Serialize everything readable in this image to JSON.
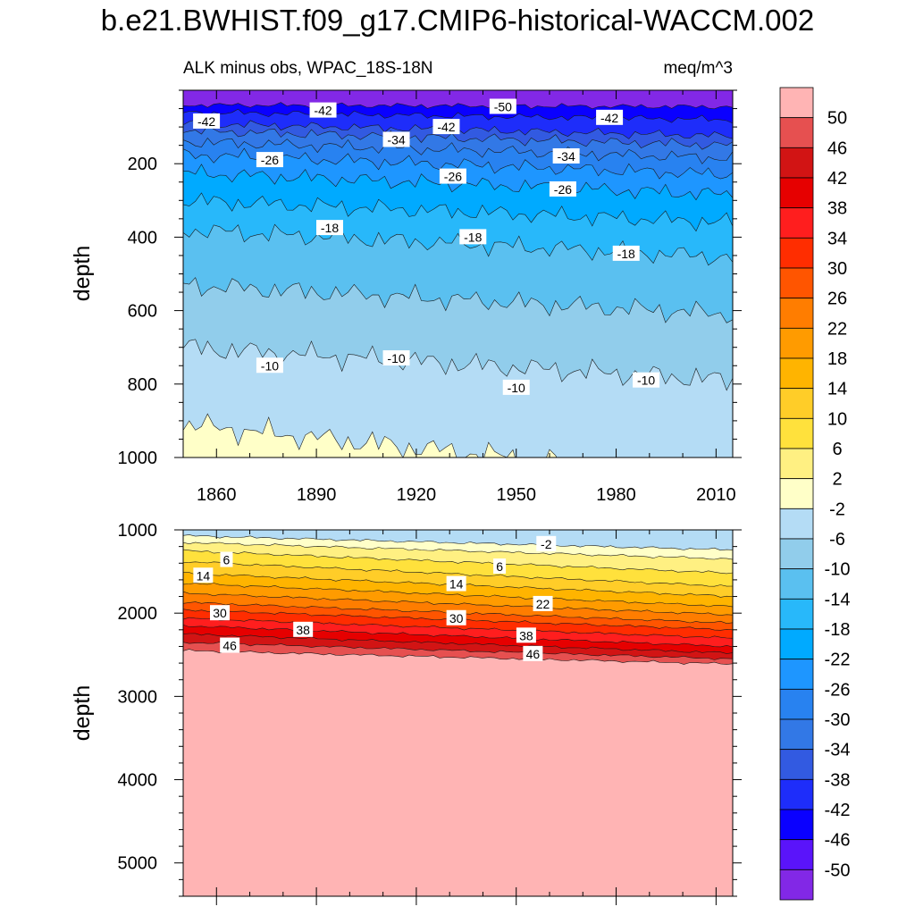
{
  "chart_data": {
    "type": "contour",
    "title": "b.e21.BWHIST.f09_g17.CMIP6-historical-WACCM.002",
    "subtitle_left": "ALK minus obs, WPAC_18S-18N",
    "subtitle_right": "meq/m^3",
    "x_ticks": [
      "1860",
      "1890",
      "1920",
      "1950",
      "1980",
      "2010"
    ],
    "x_tick_values": [
      1860,
      1890,
      1920,
      1950,
      1980,
      2010
    ],
    "xlim": [
      1850,
      2015
    ],
    "colorbar_labels": [
      "50",
      "46",
      "42",
      "38",
      "34",
      "30",
      "26",
      "22",
      "18",
      "14",
      "10",
      "6",
      "2",
      "-2",
      "-6",
      "-10",
      "-14",
      "-18",
      "-22",
      "-26",
      "-30",
      "-34",
      "-38",
      "-42",
      "-46",
      "-50"
    ],
    "colorbar_colors": [
      "#FFB4B4",
      "#E65050",
      "#D21414",
      "#E60000",
      "#FF1E1E",
      "#FF2D00",
      "#FF5500",
      "#FF7D00",
      "#FF9B00",
      "#FFB400",
      "#FFCD28",
      "#FFE13C",
      "#FFF082",
      "#FFFFC8",
      "#B4DCF5",
      "#91CDEB",
      "#5AC0F0",
      "#28B8FA",
      "#00AAFF",
      "#1E96FF",
      "#2882F0",
      "#3278E6",
      "#325AE1",
      "#1E2DFA",
      "#0A00FF",
      "#5A14FA",
      "#8228E6"
    ],
    "panels": [
      {
        "ylabel": "depth",
        "ylim": [
          0,
          1000
        ],
        "y_ticks": [
          "200",
          "400",
          "600",
          "800",
          "1000"
        ],
        "y_tick_values": [
          200,
          400,
          600,
          800,
          1000
        ],
        "contour_depths_at_1850": {
          "-50": 40,
          "-46": 60,
          "-42": 90,
          "-38": 110,
          "-34": 140,
          "-30": 175,
          "-26": 225,
          "-22": 300,
          "-18": 380,
          "-14": 530,
          "-10": 700,
          "-6": 910
        },
        "contour_depths_at_2015": {
          "-50": 45,
          "-46": 80,
          "-42": 125,
          "-38": 150,
          "-34": 185,
          "-30": 230,
          "-26": 285,
          "-22": 360,
          "-18": 455,
          "-14": 610,
          "-10": 790,
          "-6": 1060
        },
        "labels": [
          {
            "text": "-42",
            "year": 1857,
            "depth": 85
          },
          {
            "text": "-42",
            "year": 1892,
            "depth": 55
          },
          {
            "text": "-42",
            "year": 1929,
            "depth": 100
          },
          {
            "text": "-42",
            "year": 1978,
            "depth": 75
          },
          {
            "text": "-50",
            "year": 1946,
            "depth": 45
          },
          {
            "text": "-34",
            "year": 1914,
            "depth": 135
          },
          {
            "text": "-34",
            "year": 1965,
            "depth": 180
          },
          {
            "text": "-26",
            "year": 1876,
            "depth": 190
          },
          {
            "text": "-26",
            "year": 1931,
            "depth": 235
          },
          {
            "text": "-26",
            "year": 1964,
            "depth": 270
          },
          {
            "text": "-18",
            "year": 1894,
            "depth": 375
          },
          {
            "text": "-18",
            "year": 1937,
            "depth": 400
          },
          {
            "text": "-18",
            "year": 1983,
            "depth": 445
          },
          {
            "text": "-10",
            "year": 1876,
            "depth": 750
          },
          {
            "text": "-10",
            "year": 1914,
            "depth": 730
          },
          {
            "text": "-10",
            "year": 1950,
            "depth": 810
          },
          {
            "text": "-10",
            "year": 1989,
            "depth": 790
          }
        ]
      },
      {
        "ylabel": "depth",
        "ylim": [
          1000,
          5400
        ],
        "y_ticks": [
          "1000",
          "2000",
          "3000",
          "4000",
          "5000"
        ],
        "y_tick_values": [
          1000,
          2000,
          3000,
          4000,
          5000
        ],
        "contour_depths_at_1850": {
          "-6": 1000,
          "-2": 1070,
          "2": 1150,
          "6": 1250,
          "10": 1380,
          "14": 1520,
          "18": 1640,
          "22": 1760,
          "26": 1870,
          "30": 1960,
          "34": 2060,
          "38": 2150,
          "42": 2250,
          "46": 2350,
          "50": 2450
        },
        "contour_depths_at_2015": {
          "-6": 1000,
          "-2": 1240,
          "2": 1350,
          "6": 1520,
          "10": 1680,
          "14": 1800,
          "18": 1920,
          "22": 2020,
          "26": 2120,
          "30": 2200,
          "34": 2300,
          "38": 2400,
          "42": 2480,
          "46": 2550,
          "50": 2610
        },
        "labels": [
          {
            "text": "-2",
            "year": 1959,
            "depth": 1170
          },
          {
            "text": "6",
            "year": 1863,
            "depth": 1360
          },
          {
            "text": "6",
            "year": 1945,
            "depth": 1440
          },
          {
            "text": "14",
            "year": 1856,
            "depth": 1550
          },
          {
            "text": "14",
            "year": 1932,
            "depth": 1650
          },
          {
            "text": "22",
            "year": 1958,
            "depth": 1890
          },
          {
            "text": "30",
            "year": 1861,
            "depth": 2000
          },
          {
            "text": "30",
            "year": 1932,
            "depth": 2060
          },
          {
            "text": "38",
            "year": 1886,
            "depth": 2200
          },
          {
            "text": "38",
            "year": 1953,
            "depth": 2270
          },
          {
            "text": "46",
            "year": 1864,
            "depth": 2390
          },
          {
            "text": "46",
            "year": 1955,
            "depth": 2490
          }
        ]
      }
    ]
  }
}
